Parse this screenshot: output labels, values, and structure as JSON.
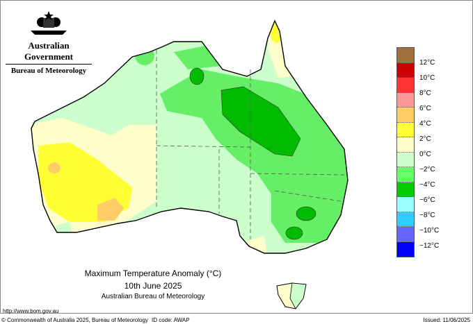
{
  "header": {
    "government": "Australian Government",
    "agency": "Bureau of Meteorology",
    "emblem": "coat-of-arms-icon"
  },
  "map": {
    "title": "Maximum Temperature Anomaly (°C)",
    "date": "10th June 2025",
    "source": "Australian Bureau of Meteorology",
    "region": "Australia"
  },
  "legend": {
    "labels": [
      "12°C",
      "10°C",
      "8°C",
      "6°C",
      "4°C",
      "2°C",
      "0°C",
      "−2°C",
      "−4°C",
      "−6°C",
      "−8°C",
      "−10°C",
      "−12°C"
    ],
    "colors": [
      "#a0703a",
      "#cc0000",
      "#ff3333",
      "#ff9999",
      "#ffcc66",
      "#ffff33",
      "#ffffcc",
      "#ccffcc",
      "#66ff66",
      "#00cc00",
      "#99ffff",
      "#33ccff",
      "#6666ff",
      "#0000ff"
    ]
  },
  "footer": {
    "url": "http://www.bom.gov.au",
    "copyright": "© Commonwealth of Australia 2025, Bureau of Meteorology",
    "id_code": "ID code: AWAP",
    "issued": "Issued: 11/06/2025"
  }
}
